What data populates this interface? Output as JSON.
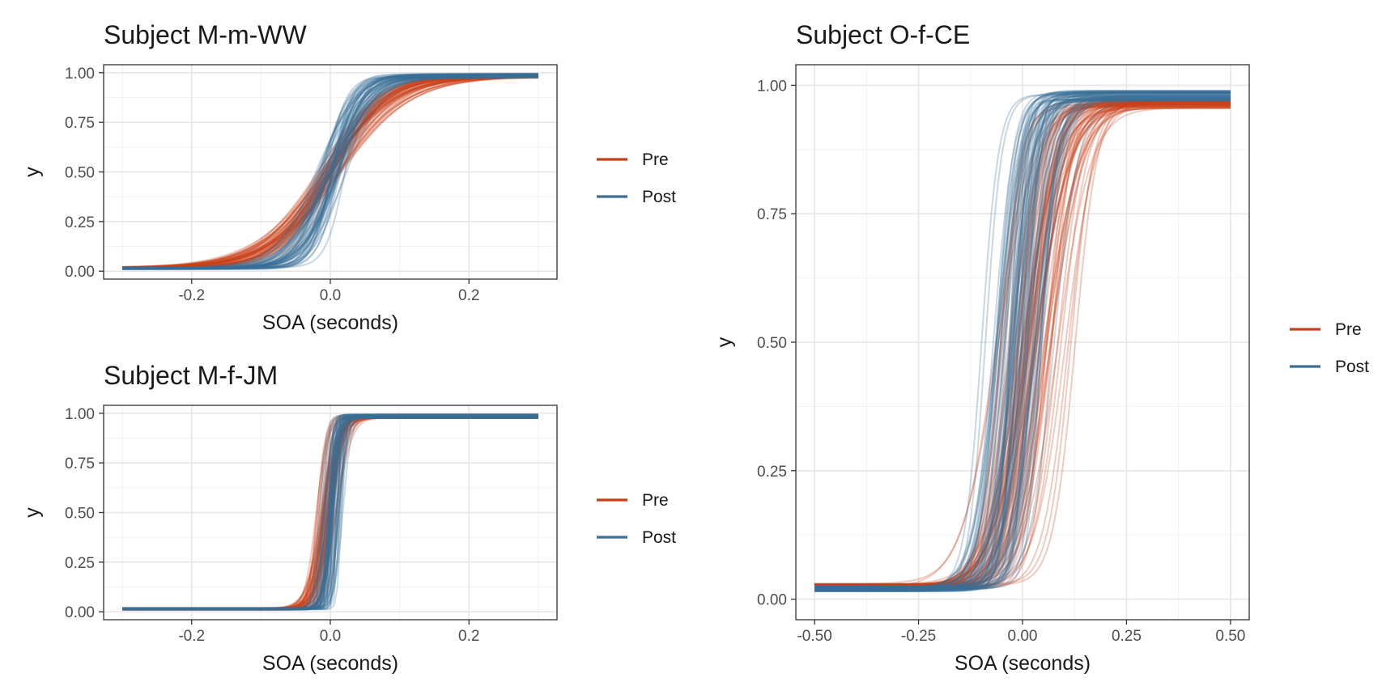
{
  "colors": {
    "pre": "#c8401a",
    "post": "#3b6e96",
    "panel_border": "#333333",
    "grid_major": "#e6e6e6",
    "grid_minor": "#f2f2f2",
    "text": "#1a1a1a",
    "tick_text": "#4d4d4d"
  },
  "chart_data": [
    {
      "type": "line",
      "title": "Subject M-m-WW",
      "xlabel": "SOA (seconds)",
      "ylabel": "y",
      "xlim": [
        -0.3,
        0.3
      ],
      "ylim": [
        0,
        1
      ],
      "x_ticks": [
        -0.2,
        0.0,
        0.2
      ],
      "x_tick_labels": [
        "-0.2",
        "0.0",
        "0.2"
      ],
      "y_ticks": [
        0,
        0.25,
        0.5,
        0.75,
        1
      ],
      "y_tick_labels": [
        "0.00",
        "0.25",
        "0.50",
        "0.75",
        "1.00"
      ],
      "grid": true,
      "legend": {
        "position": "right",
        "entries": [
          "Pre",
          "Post"
        ]
      },
      "curve_family": "logistic",
      "series": [
        {
          "name": "Pre",
          "color_key": "pre",
          "n_draws": 60,
          "pss": 0.0,
          "jnd_range": [
            0.07,
            0.12
          ],
          "pss_spread": 0.01,
          "lower": 0.015,
          "upper": 0.985
        },
        {
          "name": "Post",
          "color_key": "post",
          "n_draws": 60,
          "pss": 0.0,
          "jnd_range": [
            0.03,
            0.07
          ],
          "pss_spread": 0.01,
          "lower": 0.015,
          "upper": 0.985
        }
      ]
    },
    {
      "type": "line",
      "title": "Subject M-f-JM",
      "xlabel": "SOA (seconds)",
      "ylabel": "y",
      "xlim": [
        -0.3,
        0.3
      ],
      "ylim": [
        0,
        1
      ],
      "x_ticks": [
        -0.2,
        0.0,
        0.2
      ],
      "x_tick_labels": [
        "-0.2",
        "0.0",
        "0.2"
      ],
      "y_ticks": [
        0,
        0.25,
        0.5,
        0.75,
        1
      ],
      "y_tick_labels": [
        "0.00",
        "0.25",
        "0.50",
        "0.75",
        "1.00"
      ],
      "grid": true,
      "legend": {
        "position": "right",
        "entries": [
          "Pre",
          "Post"
        ]
      },
      "curve_family": "logistic",
      "series": [
        {
          "name": "Pre",
          "color_key": "pre",
          "n_draws": 60,
          "pss": -0.003,
          "jnd_range": [
            0.012,
            0.025
          ],
          "pss_spread": 0.008,
          "lower": 0.015,
          "upper": 0.985
        },
        {
          "name": "Post",
          "color_key": "post",
          "n_draws": 60,
          "pss": 0.004,
          "jnd_range": [
            0.006,
            0.014
          ],
          "pss_spread": 0.006,
          "lower": 0.015,
          "upper": 0.985
        }
      ]
    },
    {
      "type": "line",
      "title": "Subject O-f-CE",
      "xlabel": "SOA (seconds)",
      "ylabel": "y",
      "xlim": [
        -0.5,
        0.5
      ],
      "ylim": [
        0,
        1
      ],
      "x_ticks": [
        -0.5,
        -0.25,
        0.0,
        0.25,
        0.5
      ],
      "x_tick_labels": [
        "-0.50",
        "-0.25",
        "0.00",
        "0.25",
        "0.50"
      ],
      "y_ticks": [
        0,
        0.25,
        0.5,
        0.75,
        1
      ],
      "y_tick_labels": [
        "0.00",
        "0.25",
        "0.50",
        "0.75",
        "1.00"
      ],
      "grid": true,
      "legend": {
        "position": "right",
        "entries": [
          "Pre",
          "Post"
        ]
      },
      "curve_family": "logistic",
      "series": [
        {
          "name": "Pre",
          "color_key": "pre",
          "n_draws": 70,
          "pss": 0.02,
          "jnd_range": [
            0.05,
            0.1
          ],
          "pss_spread": 0.04,
          "lower": 0.025,
          "upper": 0.965
        },
        {
          "name": "Post",
          "color_key": "post",
          "n_draws": 70,
          "pss": -0.01,
          "jnd_range": [
            0.03,
            0.07
          ],
          "pss_spread": 0.035,
          "lower": 0.02,
          "upper": 0.98
        }
      ]
    }
  ]
}
